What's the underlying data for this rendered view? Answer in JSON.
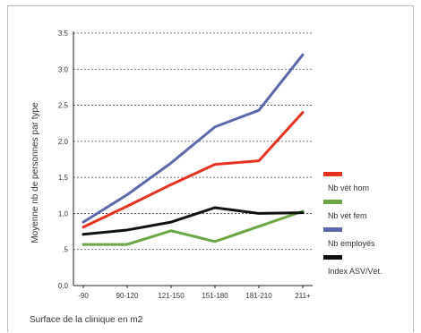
{
  "chart_data": {
    "type": "line",
    "title": "",
    "xlabel": "Surface de la clinique en m2",
    "ylabel": "Moyenne nb de personnes par type",
    "categories": [
      "-90",
      "90-120",
      "121-150",
      "151-180",
      "181-210",
      "211+"
    ],
    "ylim": [
      0,
      3.5
    ],
    "yticks": [
      0,
      0.5,
      1,
      1.5,
      2,
      2.5,
      3,
      3.5
    ],
    "ytick_labels": [
      "0.0",
      ".5",
      "1.0",
      "1.5",
      "2.0",
      "2.5",
      "3.0",
      "3.5"
    ],
    "grid": true,
    "legend_position": "right",
    "series": [
      {
        "name": "Nb vét hom",
        "color": "#e8311f",
        "values": [
          0.81,
          1.1,
          1.4,
          1.68,
          1.73,
          2.4
        ]
      },
      {
        "name": "Nb vét fem",
        "color": "#6aa642",
        "values": [
          0.57,
          0.57,
          0.76,
          0.61,
          0.82,
          1.03
        ]
      },
      {
        "name": "Nb employés",
        "color": "#5a67aa",
        "values": [
          0.88,
          1.26,
          1.7,
          2.2,
          2.43,
          3.2
        ]
      },
      {
        "name": "Index ASV/Vét.",
        "color": "#111111",
        "values": [
          0.71,
          0.77,
          0.88,
          1.08,
          1.0,
          1.01
        ]
      }
    ]
  }
}
